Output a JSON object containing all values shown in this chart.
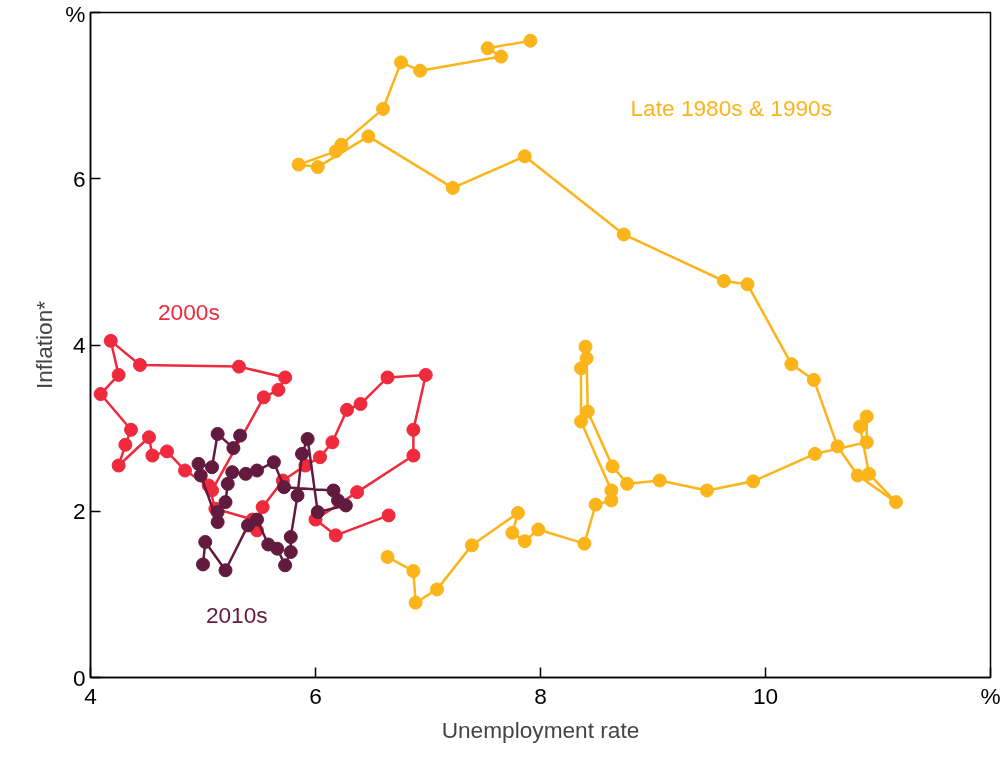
{
  "chart_data": {
    "type": "line",
    "xlabel": "Unemployment rate",
    "ylabel": "Inflation*",
    "xlim": [
      4,
      12
    ],
    "ylim": [
      0,
      8
    ],
    "xticks": [
      4,
      6,
      8,
      10,
      {
        "value": 12,
        "label": "%"
      }
    ],
    "yticks": [
      0,
      2,
      4,
      6,
      {
        "value": 8,
        "label": "%"
      }
    ],
    "grid": false,
    "marker": "circle",
    "line_style": "solid",
    "series": [
      {
        "name": "Late 1980s & 1990s",
        "color": "#fbb41a",
        "x": [
          7.91,
          7.53,
          7.65,
          6.93,
          6.76,
          6.6,
          6.23,
          6.18,
          5.85,
          6.02,
          6.47,
          7.22,
          7.86,
          8.74,
          9.63,
          9.84,
          10.23,
          10.43,
          10.64,
          10.82,
          11.16,
          10.92,
          10.84,
          10.9,
          10.9,
          10.44,
          9.89,
          9.48,
          9.06,
          8.77,
          8.64,
          8.42,
          8.41,
          8.4,
          8.36,
          8.36,
          8.63,
          8.63,
          8.49,
          8.39,
          7.98,
          7.86,
          7.75,
          7.8,
          7.39,
          7.08,
          6.89,
          6.87,
          6.64
        ],
        "values": [
          7.66,
          7.57,
          7.47,
          7.3,
          7.4,
          6.84,
          6.41,
          6.33,
          6.17,
          6.14,
          6.51,
          5.89,
          6.27,
          5.33,
          4.77,
          4.73,
          3.77,
          3.58,
          2.78,
          2.43,
          2.11,
          2.45,
          3.02,
          3.14,
          2.83,
          2.69,
          2.36,
          2.25,
          2.37,
          2.33,
          2.54,
          3.2,
          3.84,
          3.98,
          3.72,
          3.08,
          2.25,
          2.13,
          2.08,
          1.61,
          1.78,
          1.64,
          1.74,
          1.98,
          1.59,
          1.06,
          0.9,
          1.28,
          1.45
        ]
      },
      {
        "name": "2000s",
        "color": "#ee2a3c",
        "x": [
          6.65,
          6.18,
          6.0,
          6.37,
          6.87,
          6.87,
          6.98,
          6.64,
          6.4,
          6.28,
          6.15,
          6.04,
          5.91,
          5.71,
          5.53,
          5.48,
          5.44,
          5.11,
          5.05,
          4.84,
          4.68,
          4.55,
          4.52,
          4.25,
          4.31,
          4.36,
          4.09,
          4.25,
          4.18,
          4.44,
          5.32,
          5.73,
          5.67,
          5.54,
          5.08
        ],
        "values": [
          1.95,
          1.71,
          1.9,
          2.23,
          2.67,
          2.98,
          3.64,
          3.61,
          3.29,
          3.22,
          2.83,
          2.65,
          2.55,
          2.37,
          2.05,
          1.77,
          1.9,
          2.03,
          2.31,
          2.49,
          2.72,
          2.67,
          2.89,
          2.55,
          2.8,
          2.98,
          3.41,
          3.64,
          4.05,
          3.76,
          3.74,
          3.61,
          3.46,
          3.37,
          2.25
        ]
      },
      {
        "name": "2010s",
        "color": "#621a3f",
        "x": [
          5.33,
          5.27,
          5.13,
          5.08,
          4.96,
          4.98,
          5.13,
          5.13,
          5.2,
          5.22,
          5.26,
          5.38,
          5.48,
          5.63,
          5.72,
          6.16,
          6.2,
          6.27,
          6.02,
          5.93,
          5.88,
          5.84,
          5.78,
          5.78,
          5.73,
          5.66,
          5.58,
          5.48,
          5.4,
          5.2,
          5.02,
          5.0
        ],
        "values": [
          2.91,
          2.76,
          2.93,
          2.53,
          2.57,
          2.43,
          1.87,
          1.99,
          2.11,
          2.33,
          2.47,
          2.45,
          2.49,
          2.59,
          2.29,
          2.25,
          2.13,
          2.07,
          1.99,
          2.87,
          2.69,
          2.19,
          1.69,
          1.51,
          1.35,
          1.55,
          1.6,
          1.9,
          1.83,
          1.29,
          1.63,
          1.36
        ]
      }
    ]
  }
}
